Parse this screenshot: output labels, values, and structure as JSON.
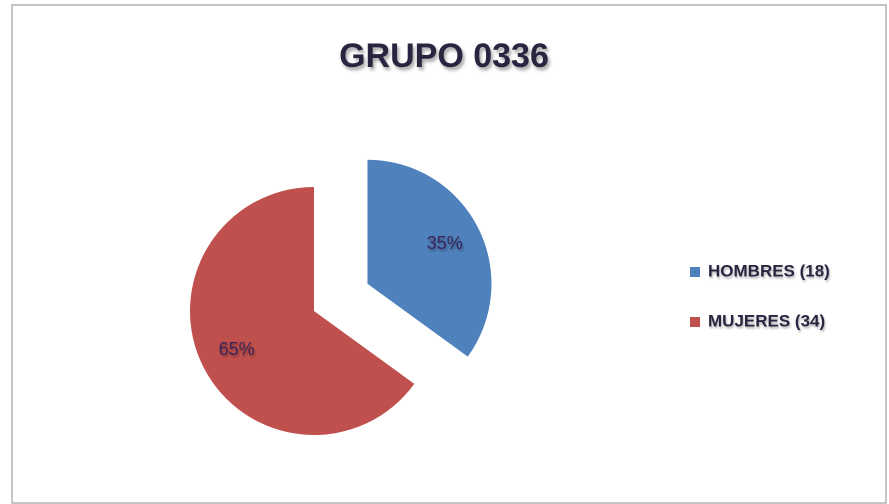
{
  "chart_data": {
    "type": "pie",
    "title": "GRUPO 0336",
    "categories": [
      "HOMBRES (18)",
      "MUJERES (34)"
    ],
    "values": [
      35,
      65
    ],
    "value_labels": [
      "35%",
      "65%"
    ],
    "colors": [
      "#4f81bd",
      "#c0504d"
    ],
    "exploded": [
      true,
      false
    ],
    "legend": "right"
  }
}
